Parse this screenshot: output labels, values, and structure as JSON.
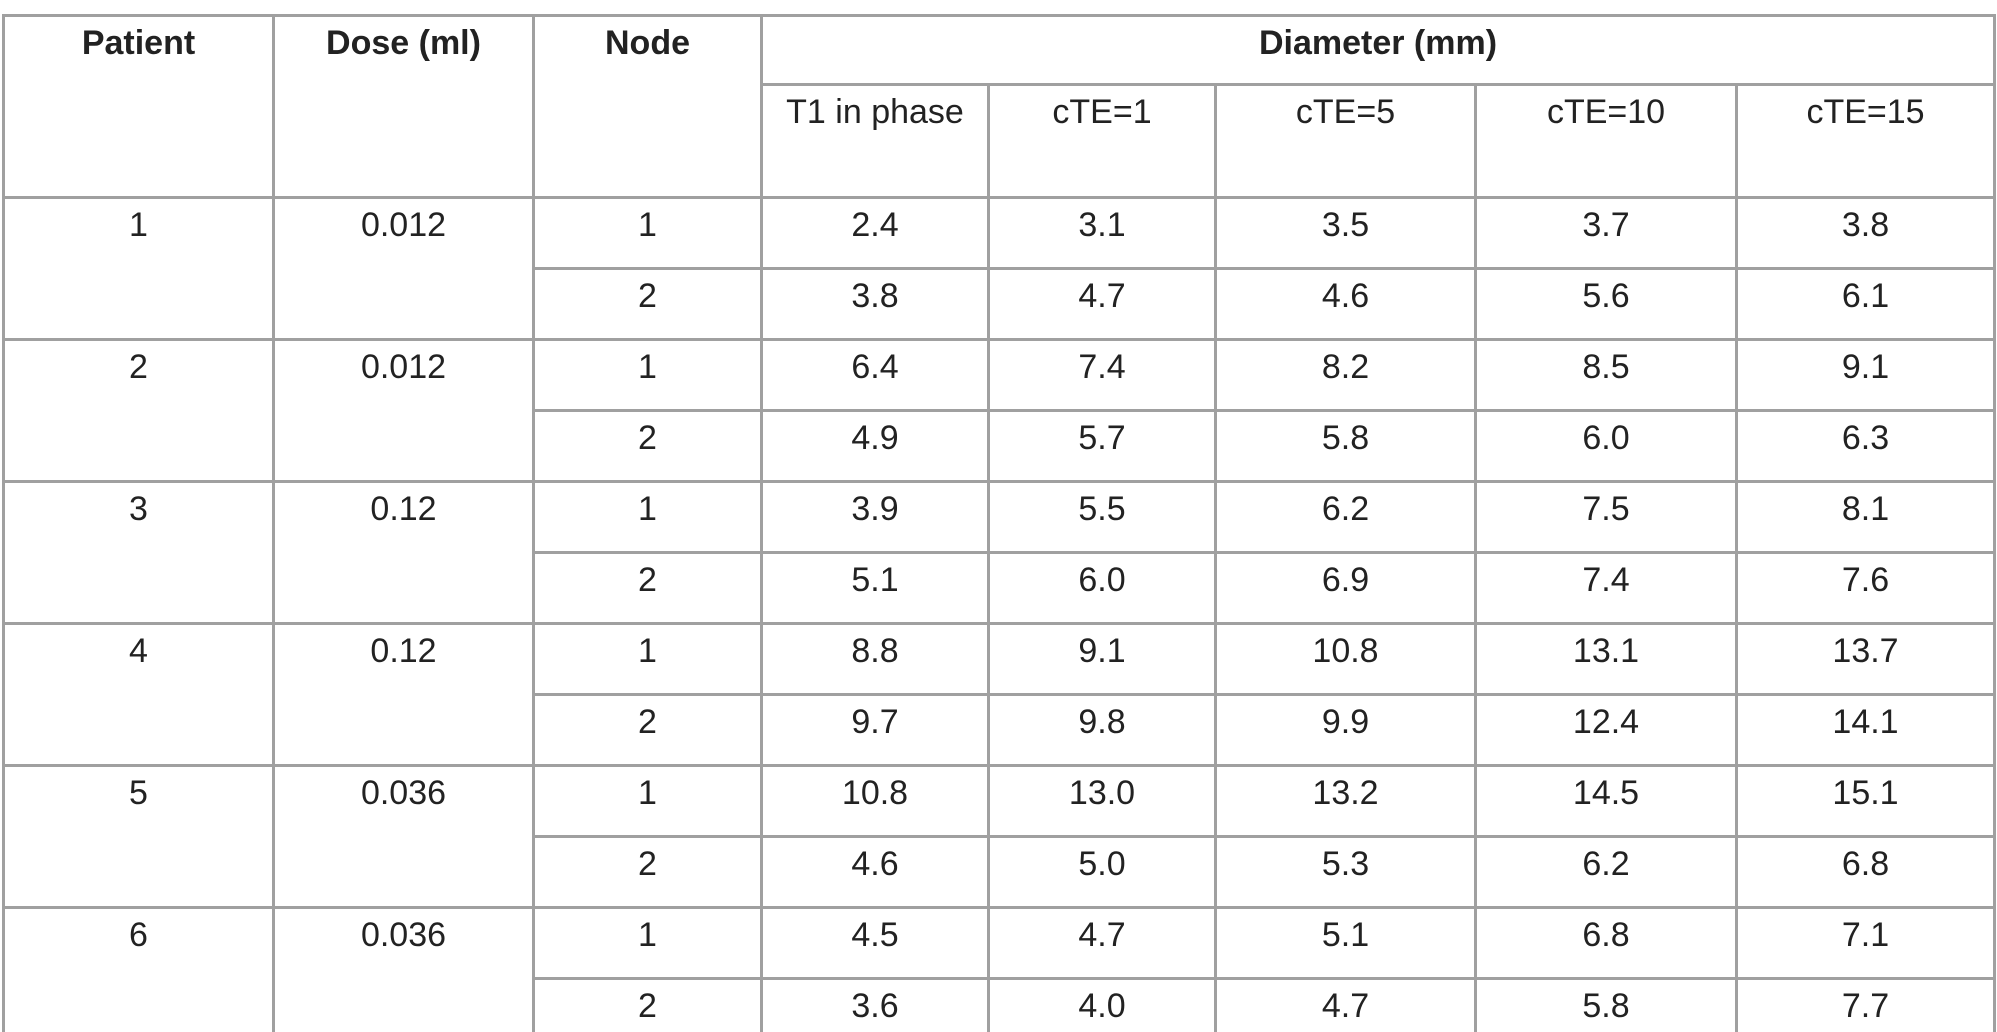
{
  "header": {
    "patient": "Patient",
    "dose": "Dose (ml)",
    "node": "Node",
    "diameter": "Diameter (mm)",
    "sub": [
      "T1 in phase",
      "cTE=1",
      "cTE=5",
      "cTE=10",
      "cTE=15"
    ]
  },
  "table": {
    "groups": [
      {
        "patient": "1",
        "dose": "0.012",
        "rows": [
          {
            "node": "1",
            "values": [
              "2.4",
              "3.1",
              "3.5",
              "3.7",
              "3.8"
            ]
          },
          {
            "node": "2",
            "values": [
              "3.8",
              "4.7",
              "4.6",
              "5.6",
              "6.1"
            ]
          }
        ]
      },
      {
        "patient": "2",
        "dose": "0.012",
        "rows": [
          {
            "node": "1",
            "values": [
              "6.4",
              "7.4",
              "8.2",
              "8.5",
              "9.1"
            ]
          },
          {
            "node": "2",
            "values": [
              "4.9",
              "5.7",
              "5.8",
              "6.0",
              "6.3"
            ]
          }
        ]
      },
      {
        "patient": "3",
        "dose": "0.12",
        "rows": [
          {
            "node": "1",
            "values": [
              "3.9",
              "5.5",
              "6.2",
              "7.5",
              "8.1"
            ]
          },
          {
            "node": "2",
            "values": [
              "5.1",
              "6.0",
              "6.9",
              "7.4",
              "7.6"
            ]
          }
        ]
      },
      {
        "patient": "4",
        "dose": "0.12",
        "rows": [
          {
            "node": "1",
            "values": [
              "8.8",
              "9.1",
              "10.8",
              "13.1",
              "13.7"
            ]
          },
          {
            "node": "2",
            "values": [
              "9.7",
              "9.8",
              "9.9",
              "12.4",
              "14.1"
            ]
          }
        ]
      },
      {
        "patient": "5",
        "dose": "0.036",
        "rows": [
          {
            "node": "1",
            "values": [
              "10.8",
              "13.0",
              "13.2",
              "14.5",
              "15.1"
            ]
          },
          {
            "node": "2",
            "values": [
              "4.6",
              "5.0",
              "5.3",
              "6.2",
              "6.8"
            ]
          }
        ]
      },
      {
        "patient": "6",
        "dose": "0.036",
        "rows": [
          {
            "node": "1",
            "values": [
              "4.5",
              "4.7",
              "5.1",
              "6.8",
              "7.1"
            ]
          },
          {
            "node": "2",
            "values": [
              "3.6",
              "4.0",
              "4.7",
              "5.8",
              "7.7"
            ]
          }
        ]
      }
    ]
  }
}
